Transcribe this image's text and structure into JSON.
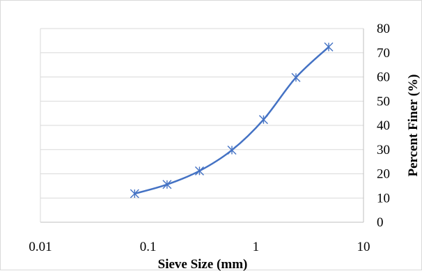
{
  "chart_data": {
    "type": "scatter",
    "xlabel": "Sieve Size (mm)",
    "ylabel": "Percent Finer (%)",
    "x_scale": "log",
    "xlim": [
      0.01,
      10
    ],
    "ylim": [
      0,
      80
    ],
    "x_ticks": [
      0.01,
      0.1,
      1,
      10
    ],
    "x_tick_labels": [
      "0.01",
      "0.1",
      "1",
      "10"
    ],
    "y_ticks": [
      0,
      10,
      20,
      30,
      40,
      50,
      60,
      70,
      80
    ],
    "y_tick_labels": [
      "0",
      "10",
      "20",
      "30",
      "40",
      "50",
      "60",
      "70",
      "80"
    ],
    "y_axis_side": "right",
    "grid": "horizontal",
    "marker": "star",
    "line": "smooth",
    "series": [
      {
        "color": "#4472C4",
        "points": [
          {
            "x": 0.075,
            "y": 11.8
          },
          {
            "x": 0.15,
            "y": 15.6
          },
          {
            "x": 0.3,
            "y": 21.2
          },
          {
            "x": 0.6,
            "y": 29.8
          },
          {
            "x": 1.18,
            "y": 42.4
          },
          {
            "x": 2.36,
            "y": 59.8
          },
          {
            "x": 4.75,
            "y": 72.4
          }
        ]
      }
    ]
  }
}
